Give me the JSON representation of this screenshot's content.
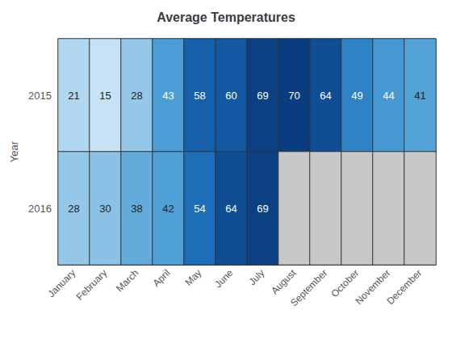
{
  "chart_data": {
    "type": "heatmap",
    "title": "Average Temperatures",
    "x_categories": [
      "January",
      "February",
      "March",
      "April",
      "May",
      "June",
      "July",
      "August",
      "September",
      "October",
      "November",
      "December"
    ],
    "y_categories": [
      "2015",
      "2016"
    ],
    "ylabel": "Year",
    "values": [
      [
        21,
        15,
        28,
        43,
        58,
        60,
        69,
        70,
        64,
        49,
        44,
        41
      ],
      [
        28,
        30,
        38,
        42,
        54,
        64,
        69,
        null,
        null,
        null,
        null,
        null
      ]
    ],
    "color_range": [
      15,
      70
    ],
    "color_scale": [
      "#c6e2f5",
      "#a8d1ee",
      "#7ab8e0",
      "#4d9fd6",
      "#2176c0",
      "#1155a0",
      "#0a3d80"
    ],
    "missing_color": "#c8c8c8",
    "data_labels": true
  }
}
